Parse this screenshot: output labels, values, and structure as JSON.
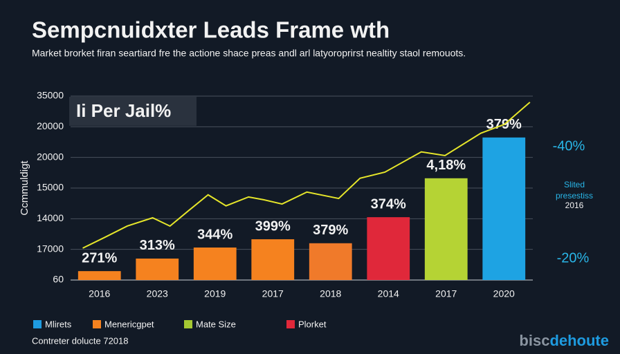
{
  "chart_data": {
    "type": "bar",
    "title": "Sempcnuidxter Leads Frame wth",
    "subtitle": "Market brorket firan seartiard fre the actione shace preas andl arl latyoroprirst nealtity staol remouots.",
    "y_label": "Ccmmuldigt",
    "inset_label": "Ii Per Jail%",
    "categories": [
      "2016",
      "2023",
      "2019",
      "2017",
      "2018",
      "2014",
      "2017",
      "2020"
    ],
    "values": [
      0.29,
      0.7,
      1.06,
      1.33,
      1.2,
      2.05,
      3.32,
      4.65
    ],
    "colors": [
      "#f5821f",
      "#f5821f",
      "#f5821f",
      "#f5821f",
      "#f07a2a",
      "#e0283a",
      "#b5d334",
      "#1ea3e3"
    ],
    "bar_labels": [
      "271%",
      "313%",
      "344%",
      "399%",
      "379%",
      "374%",
      "4,18%",
      "379%"
    ],
    "ylim": [
      0,
      6
    ],
    "yticks": [
      {
        "value": 0,
        "label": "60"
      },
      {
        "value": 1,
        "label": "17000"
      },
      {
        "value": 2,
        "label": "14000"
      },
      {
        "value": 3,
        "label": "15000"
      },
      {
        "value": 4,
        "label": "20000"
      },
      {
        "value": 5,
        "label": "20000"
      },
      {
        "value": 6,
        "label": "35000"
      }
    ],
    "grid": true,
    "line": {
      "type": "line",
      "color": "#e6e62a",
      "x": [
        -0.29,
        0.1,
        0.48,
        0.92,
        1.22,
        1.54,
        1.88,
        2.19,
        2.58,
        2.84,
        3.16,
        3.59,
        4.14,
        4.51,
        4.94,
        5.57,
        5.98,
        6.6,
        7.01,
        7.45
      ],
      "values": [
        1.04,
        1.4,
        1.76,
        2.03,
        1.76,
        2.26,
        2.78,
        2.42,
        2.71,
        2.62,
        2.48,
        2.87,
        2.66,
        3.32,
        3.52,
        4.18,
        4.06,
        4.79,
        5.08,
        5.8
      ]
    },
    "annotations": [
      "-40%",
      "Slited",
      "presestiss",
      "2016",
      "-20%"
    ],
    "legend": [
      {
        "name": "Mlirets",
        "color": "#1e9be0"
      },
      {
        "name": "Menericgpet",
        "color": "#f5821f"
      },
      {
        "name": "Mate Size",
        "color": "#a5c832"
      },
      {
        "name": "Plorket",
        "color": "#e0283a"
      }
    ],
    "footer": "Contreter dolucte 72018",
    "brand": [
      "bisc",
      "dehoute"
    ]
  }
}
